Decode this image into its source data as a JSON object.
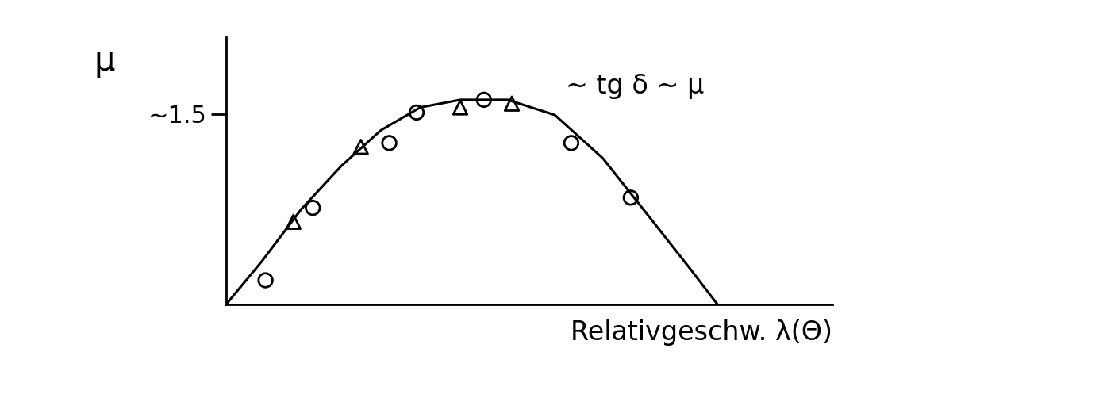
{
  "chart_data": {
    "type": "line",
    "ylabel": "μ",
    "xlabel": "Relativgeschw. λ(Θ)",
    "annotations": [
      {
        "text": "~ tg δ ~ μ",
        "x": 5.6,
        "y": 1.72
      }
    ],
    "xlim": [
      0,
      10
    ],
    "ylim": [
      0,
      2.1
    ],
    "xticks": [],
    "yticks": [
      {
        "value": 1.5,
        "label": "~1.5"
      }
    ],
    "tick_labels": "y",
    "grid": false,
    "series": [
      {
        "type": "line",
        "color": "#000000",
        "line_style": "solid",
        "x": [
          0,
          0.59,
          1.24,
          1.9,
          2.55,
          3.2,
          3.86,
          4.64,
          5.42,
          6.21,
          6.99,
          7.65,
          8.1
        ],
        "values": [
          0,
          0.34,
          0.75,
          1.09,
          1.37,
          1.55,
          1.61,
          1.61,
          1.49,
          1.15,
          0.68,
          0.28,
          0
        ]
      },
      {
        "type": "scatter",
        "color": "#000000",
        "marker": "o",
        "x": [
          0.65,
          1.43,
          2.69,
          3.14,
          4.25,
          5.69,
          6.67
        ],
        "values": [
          0.19,
          0.76,
          1.27,
          1.51,
          1.61,
          1.27,
          0.84
        ]
      },
      {
        "type": "scatter",
        "color": "#000000",
        "marker": "^",
        "x": [
          1.11,
          2.22,
          3.86,
          4.71
        ],
        "values": [
          0.65,
          1.24,
          1.55,
          1.58
        ]
      }
    ]
  }
}
